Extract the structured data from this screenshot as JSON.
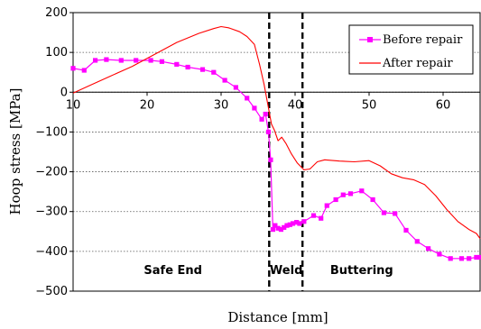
{
  "chart_data": {
    "type": "line",
    "xlabel": "Distance [mm]",
    "ylabel": "Hoop stress [MPa]",
    "xlim": [
      10,
      65
    ],
    "ylim": [
      -500,
      200
    ],
    "x_ticks": [
      10,
      20,
      30,
      40,
      50,
      60
    ],
    "y_ticks": [
      200,
      100,
      0,
      -100,
      -200,
      -300,
      -400,
      -500
    ],
    "grid": "horizontal dotted",
    "legend_position": "top-right",
    "boundaries_x": [
      36.5,
      41
    ],
    "regions": [
      {
        "label": "Safe End",
        "x": 23.5
      },
      {
        "label": "Weld",
        "x": 38.8
      },
      {
        "label": "Buttering",
        "x": 49
      }
    ],
    "series": [
      {
        "name": "Before repair",
        "color": "#ff00ff",
        "marker": "square",
        "points": [
          [
            10,
            60
          ],
          [
            11.5,
            55
          ],
          [
            13,
            80
          ],
          [
            14.5,
            82
          ],
          [
            16.5,
            80
          ],
          [
            18.5,
            80
          ],
          [
            20.5,
            80
          ],
          [
            22,
            77
          ],
          [
            24,
            70
          ],
          [
            25.5,
            63
          ],
          [
            27.5,
            57
          ],
          [
            29,
            50
          ],
          [
            30.5,
            30
          ],
          [
            32,
            12
          ],
          [
            33.5,
            -15
          ],
          [
            34.5,
            -40
          ],
          [
            35.5,
            -68
          ],
          [
            36,
            -55
          ],
          [
            36.4,
            -100
          ],
          [
            36.7,
            -170
          ],
          [
            37,
            -345
          ],
          [
            37.3,
            -335
          ],
          [
            37.7,
            -342
          ],
          [
            38.1,
            -345
          ],
          [
            38.5,
            -340
          ],
          [
            38.9,
            -335
          ],
          [
            39.3,
            -333
          ],
          [
            39.7,
            -330
          ],
          [
            40.2,
            -327
          ],
          [
            40.6,
            -330
          ],
          [
            41.2,
            -325
          ],
          [
            42.5,
            -310
          ],
          [
            43.5,
            -317
          ],
          [
            44.3,
            -285
          ],
          [
            45.5,
            -270
          ],
          [
            46.5,
            -258
          ],
          [
            47.5,
            -255
          ],
          [
            49,
            -248
          ],
          [
            50.5,
            -270
          ],
          [
            52,
            -303
          ],
          [
            53.5,
            -305
          ],
          [
            55,
            -347
          ],
          [
            56.5,
            -375
          ],
          [
            58,
            -393
          ],
          [
            59.5,
            -407
          ],
          [
            61,
            -418
          ],
          [
            62.5,
            -418
          ],
          [
            63.5,
            -418
          ],
          [
            64.5,
            -415
          ],
          [
            65,
            -415
          ]
        ]
      },
      {
        "name": "After repair",
        "color": "#ff0000",
        "marker": "none",
        "points": [
          [
            10,
            -2
          ],
          [
            12,
            15
          ],
          [
            15,
            40
          ],
          [
            18,
            65
          ],
          [
            21,
            95
          ],
          [
            24,
            125
          ],
          [
            27,
            148
          ],
          [
            29,
            160
          ],
          [
            30,
            165
          ],
          [
            31,
            162
          ],
          [
            32.5,
            152
          ],
          [
            33.5,
            140
          ],
          [
            34.5,
            120
          ],
          [
            35.2,
            70
          ],
          [
            35.8,
            20
          ],
          [
            36.3,
            -30
          ],
          [
            36.8,
            -80
          ],
          [
            37.2,
            -95
          ],
          [
            37.7,
            -122
          ],
          [
            38.2,
            -113
          ],
          [
            38.8,
            -130
          ],
          [
            39.5,
            -155
          ],
          [
            40.3,
            -178
          ],
          [
            41.2,
            -195
          ],
          [
            42,
            -193
          ],
          [
            43,
            -175
          ],
          [
            44,
            -170
          ],
          [
            46,
            -173
          ],
          [
            48,
            -175
          ],
          [
            50,
            -172
          ],
          [
            51.5,
            -185
          ],
          [
            53,
            -205
          ],
          [
            54.5,
            -215
          ],
          [
            56,
            -220
          ],
          [
            57.5,
            -232
          ],
          [
            59,
            -260
          ],
          [
            60.5,
            -295
          ],
          [
            62,
            -325
          ],
          [
            63.5,
            -345
          ],
          [
            64.5,
            -355
          ],
          [
            65,
            -368
          ]
        ]
      }
    ]
  }
}
